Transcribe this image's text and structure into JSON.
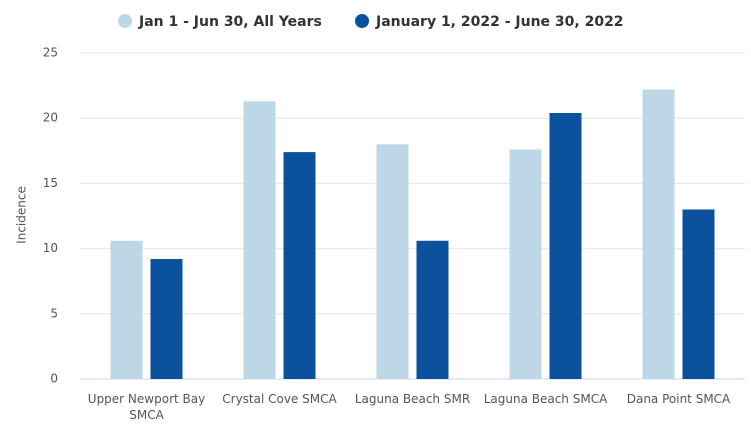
{
  "chart_data": {
    "type": "bar",
    "y_label": "Incidence",
    "categories": [
      "Upper Newport Bay SMCA",
      "Crystal Cove SMCA",
      "Laguna Beach SMR",
      "Laguna Beach SMCA",
      "Dana Point SMCA"
    ],
    "series": [
      {
        "name": "Jan 1 - Jun 30, All Years",
        "color": "#bdd7e7",
        "values": [
          10.6,
          21.3,
          18.0,
          17.6,
          22.2
        ]
      },
      {
        "name": "January 1, 2022 - June 30, 2022",
        "color": "#0b519d",
        "values": [
          9.2,
          17.4,
          10.6,
          20.4,
          13.0
        ]
      }
    ],
    "ylim": [
      0,
      25
    ],
    "yticks": [
      0,
      5,
      10,
      15,
      20,
      25
    ],
    "grid": true,
    "legend": "top"
  }
}
